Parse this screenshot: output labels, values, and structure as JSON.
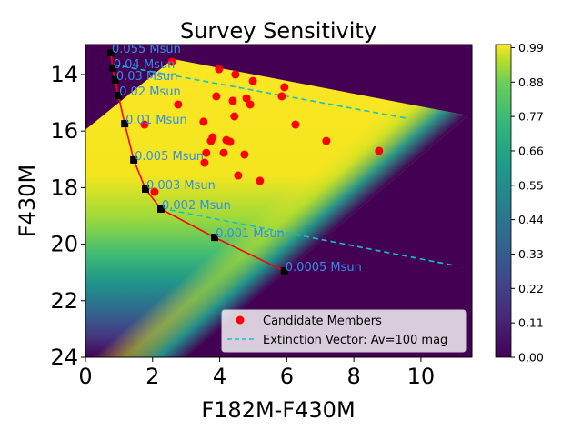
{
  "chart_data": {
    "type": "scatter",
    "title": "Survey Sensitivity",
    "xlabel": "F182M-F430M",
    "ylabel": "F430M",
    "xlim": [
      0,
      11.52
    ],
    "ylim": [
      24,
      12.94
    ],
    "y_inverted": true,
    "xticks": [
      0,
      2,
      4,
      6,
      8,
      10
    ],
    "yticks": [
      14,
      16,
      18,
      20,
      22,
      24
    ],
    "grid": false,
    "legend_position": "lower-right",
    "series": [
      {
        "name": "Candidate Members",
        "kind": "scatter",
        "color": "#ff0000",
        "points": [
          [
            2.57,
            13.55
          ],
          [
            3.98,
            13.81
          ],
          [
            4.47,
            14.0
          ],
          [
            4.99,
            14.23
          ],
          [
            5.93,
            14.45
          ],
          [
            3.9,
            14.77
          ],
          [
            4.39,
            14.93
          ],
          [
            4.8,
            14.84
          ],
          [
            4.91,
            15.06
          ],
          [
            5.85,
            14.77
          ],
          [
            2.76,
            15.06
          ],
          [
            4.44,
            15.48
          ],
          [
            3.52,
            15.67
          ],
          [
            1.76,
            15.77
          ],
          [
            6.26,
            15.77
          ],
          [
            3.79,
            16.22
          ],
          [
            3.74,
            16.35
          ],
          [
            4.2,
            16.32
          ],
          [
            4.31,
            16.38
          ],
          [
            7.18,
            16.35
          ],
          [
            8.75,
            16.7
          ],
          [
            3.6,
            16.77
          ],
          [
            4.12,
            16.77
          ],
          [
            4.74,
            16.83
          ],
          [
            3.55,
            17.12
          ],
          [
            4.55,
            17.57
          ],
          [
            5.2,
            17.76
          ],
          [
            2.06,
            18.15
          ]
        ]
      },
      {
        "name": "Extinction Vector: Av=100 mag",
        "kind": "dashed-line",
        "color": "#17becf",
        "segments": [
          [
            [
              0.84,
              13.65
            ],
            [
              9.54,
              15.54
            ]
          ],
          [
            [
              2.25,
              18.73
            ],
            [
              10.98,
              20.75
            ]
          ]
        ]
      }
    ],
    "isochrone": {
      "color": "#ff0000",
      "marker_color": "#000000",
      "points": [
        {
          "x": 0.76,
          "y": 13.23,
          "label": "0.055 Msun"
        },
        {
          "x": 0.81,
          "y": 13.77,
          "label": "0.04 Msun"
        },
        {
          "x": 0.89,
          "y": 14.19,
          "label": "0.03 Msun"
        },
        {
          "x": 0.98,
          "y": 14.74,
          "label": "0.02 Msun"
        },
        {
          "x": 1.17,
          "y": 15.74,
          "label": "0.01 Msun"
        },
        {
          "x": 1.44,
          "y": 17.02,
          "label": "0.005 Msun"
        },
        {
          "x": 1.79,
          "y": 18.05,
          "label": "0.003 Msun"
        },
        {
          "x": 2.25,
          "y": 18.76,
          "label": "0.002 Msun"
        },
        {
          "x": 3.85,
          "y": 19.76,
          "label": "0.001 Msun"
        },
        {
          "x": 5.93,
          "y": 20.95,
          "label": "0.0005 Msun"
        }
      ],
      "label_color": "#2f8fe8"
    },
    "heatmap": {
      "colormap": "viridis",
      "range": [
        0,
        1
      ],
      "colorbar_ticks": [
        "0.00",
        "0.11",
        "0.22",
        "0.33",
        "0.44",
        "0.55",
        "0.66",
        "0.77",
        "0.88",
        "0.99"
      ],
      "sensitive_region": [
        [
          0,
          15.95
        ],
        [
          2.6,
          13.45
        ],
        [
          11.4,
          15.45
        ],
        [
          3.0,
          24
        ],
        [
          0,
          24
        ]
      ]
    }
  }
}
